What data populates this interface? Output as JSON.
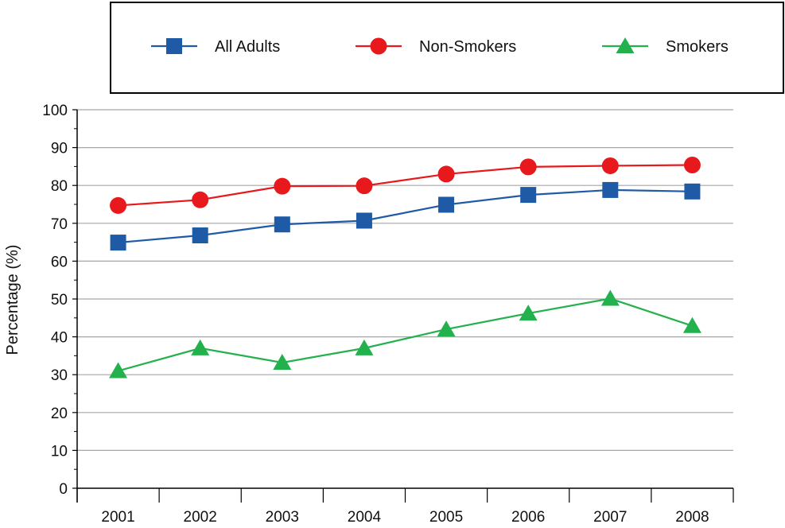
{
  "chart_data": {
    "type": "line",
    "title": "",
    "xlabel": "",
    "ylabel": "Percentage (%)",
    "categories": [
      "2001",
      "2002",
      "2003",
      "2004",
      "2005",
      "2006",
      "2007",
      "2008"
    ],
    "ylim": [
      0,
      100
    ],
    "yticks": [
      0,
      10,
      20,
      30,
      40,
      50,
      60,
      70,
      80,
      90,
      100
    ],
    "grid": true,
    "legend_position": "top",
    "series": [
      {
        "name": "All Adults",
        "color": "#1f5aa6",
        "marker": "square",
        "values": [
          64.9,
          66.8,
          69.7,
          70.7,
          74.9,
          77.5,
          78.8,
          78.4
        ]
      },
      {
        "name": "Non-Smokers",
        "color": "#e8191c",
        "marker": "circle",
        "values": [
          74.7,
          76.2,
          79.8,
          79.9,
          83.0,
          84.9,
          85.2,
          85.4
        ]
      },
      {
        "name": "Smokers",
        "color": "#22b14c",
        "marker": "triangle",
        "values": [
          31.0,
          37.0,
          33.2,
          37.0,
          42.0,
          46.2,
          50.1,
          42.9
        ]
      }
    ]
  }
}
